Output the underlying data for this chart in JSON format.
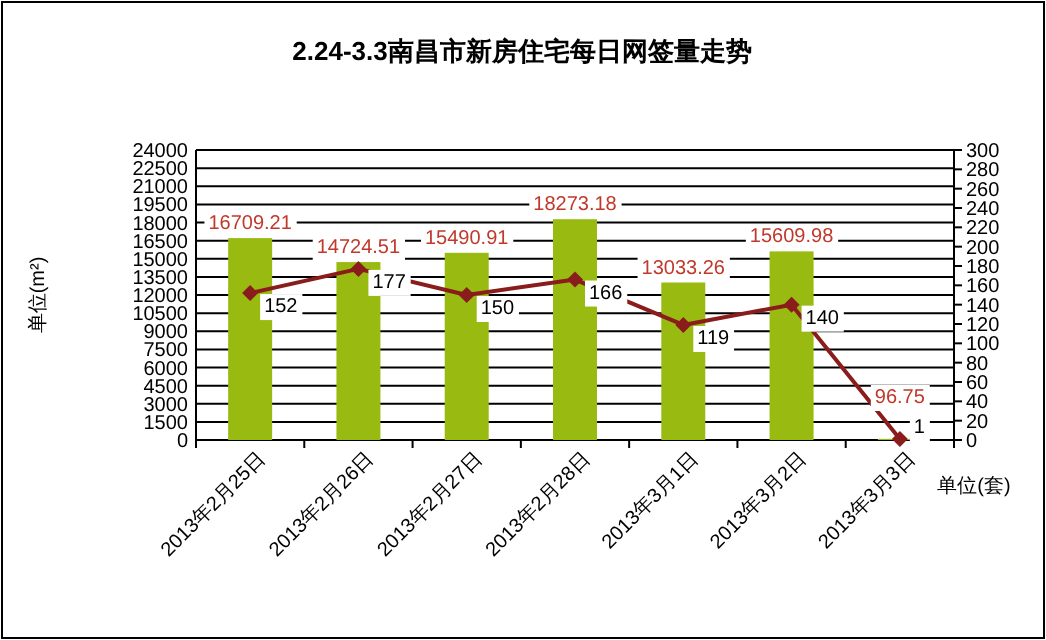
{
  "chart_data": {
    "type": "bar",
    "title": "2.24-3.3南昌市新房住宅每日网签量走势",
    "ylabel": "单位(m²)",
    "y2label": "单位(套)",
    "categories": [
      "2013年2月25日",
      "2013年2月26日",
      "2013年2月27日",
      "2013年2月28日",
      "2013年3月1日",
      "2013年3月2日",
      "2013年3月3日"
    ],
    "series": [
      {
        "color": "#99bb11",
        "values": [
          16709.21,
          14724.51,
          15490.91,
          18273.18,
          13033.26,
          15609.98,
          96.75
        ]
      },
      {
        "type": "line",
        "axis": "y2",
        "color": "#8b1c1c",
        "marker": "diamond",
        "values": [
          152,
          177,
          150,
          166,
          119,
          140,
          1
        ]
      }
    ],
    "ylim": [
      0,
      24000
    ],
    "yticks": [
      0,
      1500,
      3000,
      4500,
      6000,
      7500,
      9000,
      10500,
      12000,
      13500,
      15000,
      16500,
      18000,
      19500,
      21000,
      22500,
      24000
    ],
    "y2lim": [
      0,
      300
    ],
    "y2ticks": [
      0,
      20,
      40,
      60,
      80,
      100,
      120,
      140,
      160,
      180,
      200,
      220,
      240,
      260,
      280,
      300
    ],
    "grid": "y",
    "data_labels": true
  }
}
